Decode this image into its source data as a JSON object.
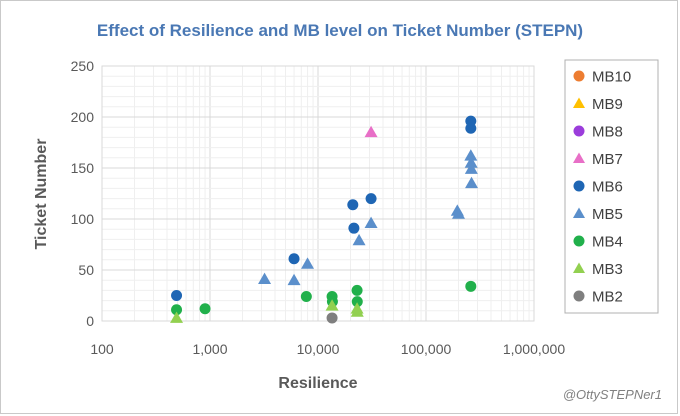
{
  "chart_data": {
    "type": "scatter",
    "title": "Effect of Resilience and MB level on Ticket Number (STEPN)",
    "xlabel": "Resilience",
    "ylabel": "Ticket Number",
    "xscale": "log",
    "xlim": [
      100,
      1000000
    ],
    "ylim": [
      0,
      250
    ],
    "xticks": [
      100,
      1000,
      10000,
      100000,
      1000000
    ],
    "xtick_labels": [
      "100",
      "1,000",
      "10,000",
      "100,000",
      "1,000,000"
    ],
    "yticks": [
      0,
      50,
      100,
      150,
      200,
      250
    ],
    "ytick_labels": [
      "0",
      "50",
      "100",
      "150",
      "200",
      "250"
    ],
    "grid": true,
    "legend_position": "right",
    "series": [
      {
        "name": "MB10",
        "marker": "circle",
        "color": "#ed7d31",
        "points": []
      },
      {
        "name": "MB9",
        "marker": "triangle",
        "color": "#ffc000",
        "points": []
      },
      {
        "name": "MB8",
        "marker": "circle",
        "color": "#9b3ddb",
        "points": []
      },
      {
        "name": "MB7",
        "marker": "triangle",
        "color": "#e86fc7",
        "points": [
          [
            31000,
            185
          ]
        ]
      },
      {
        "name": "MB6",
        "marker": "circle",
        "color": "#1f66b4",
        "points": [
          [
            490,
            25
          ],
          [
            6000,
            61
          ],
          [
            21000,
            114
          ],
          [
            21500,
            91
          ],
          [
            31000,
            120
          ],
          [
            260000,
            196
          ],
          [
            260000,
            189
          ]
        ]
      },
      {
        "name": "MB5",
        "marker": "triangle",
        "color": "#5b8fcb",
        "points": [
          [
            3200,
            41
          ],
          [
            6000,
            40
          ],
          [
            8000,
            56
          ],
          [
            24000,
            79
          ],
          [
            31000,
            96
          ],
          [
            195000,
            108
          ],
          [
            200000,
            105
          ],
          [
            260000,
            162
          ],
          [
            262000,
            155
          ],
          [
            263000,
            149
          ],
          [
            264000,
            135
          ]
        ]
      },
      {
        "name": "MB4",
        "marker": "circle",
        "color": "#21b04b",
        "points": [
          [
            490,
            11
          ],
          [
            900,
            12
          ],
          [
            7800,
            24
          ],
          [
            13500,
            24
          ],
          [
            13600,
            19
          ],
          [
            23000,
            30
          ],
          [
            23100,
            19
          ],
          [
            260000,
            34
          ]
        ]
      },
      {
        "name": "MB3",
        "marker": "triangle",
        "color": "#92d050",
        "points": [
          [
            490,
            3
          ],
          [
            13500,
            15
          ],
          [
            23000,
            12
          ],
          [
            23100,
            9
          ]
        ]
      },
      {
        "name": "MB2",
        "marker": "circle",
        "color": "#7f7f7f",
        "points": [
          [
            13500,
            3
          ]
        ]
      }
    ]
  },
  "watermark": "@OttySTEPNer1"
}
